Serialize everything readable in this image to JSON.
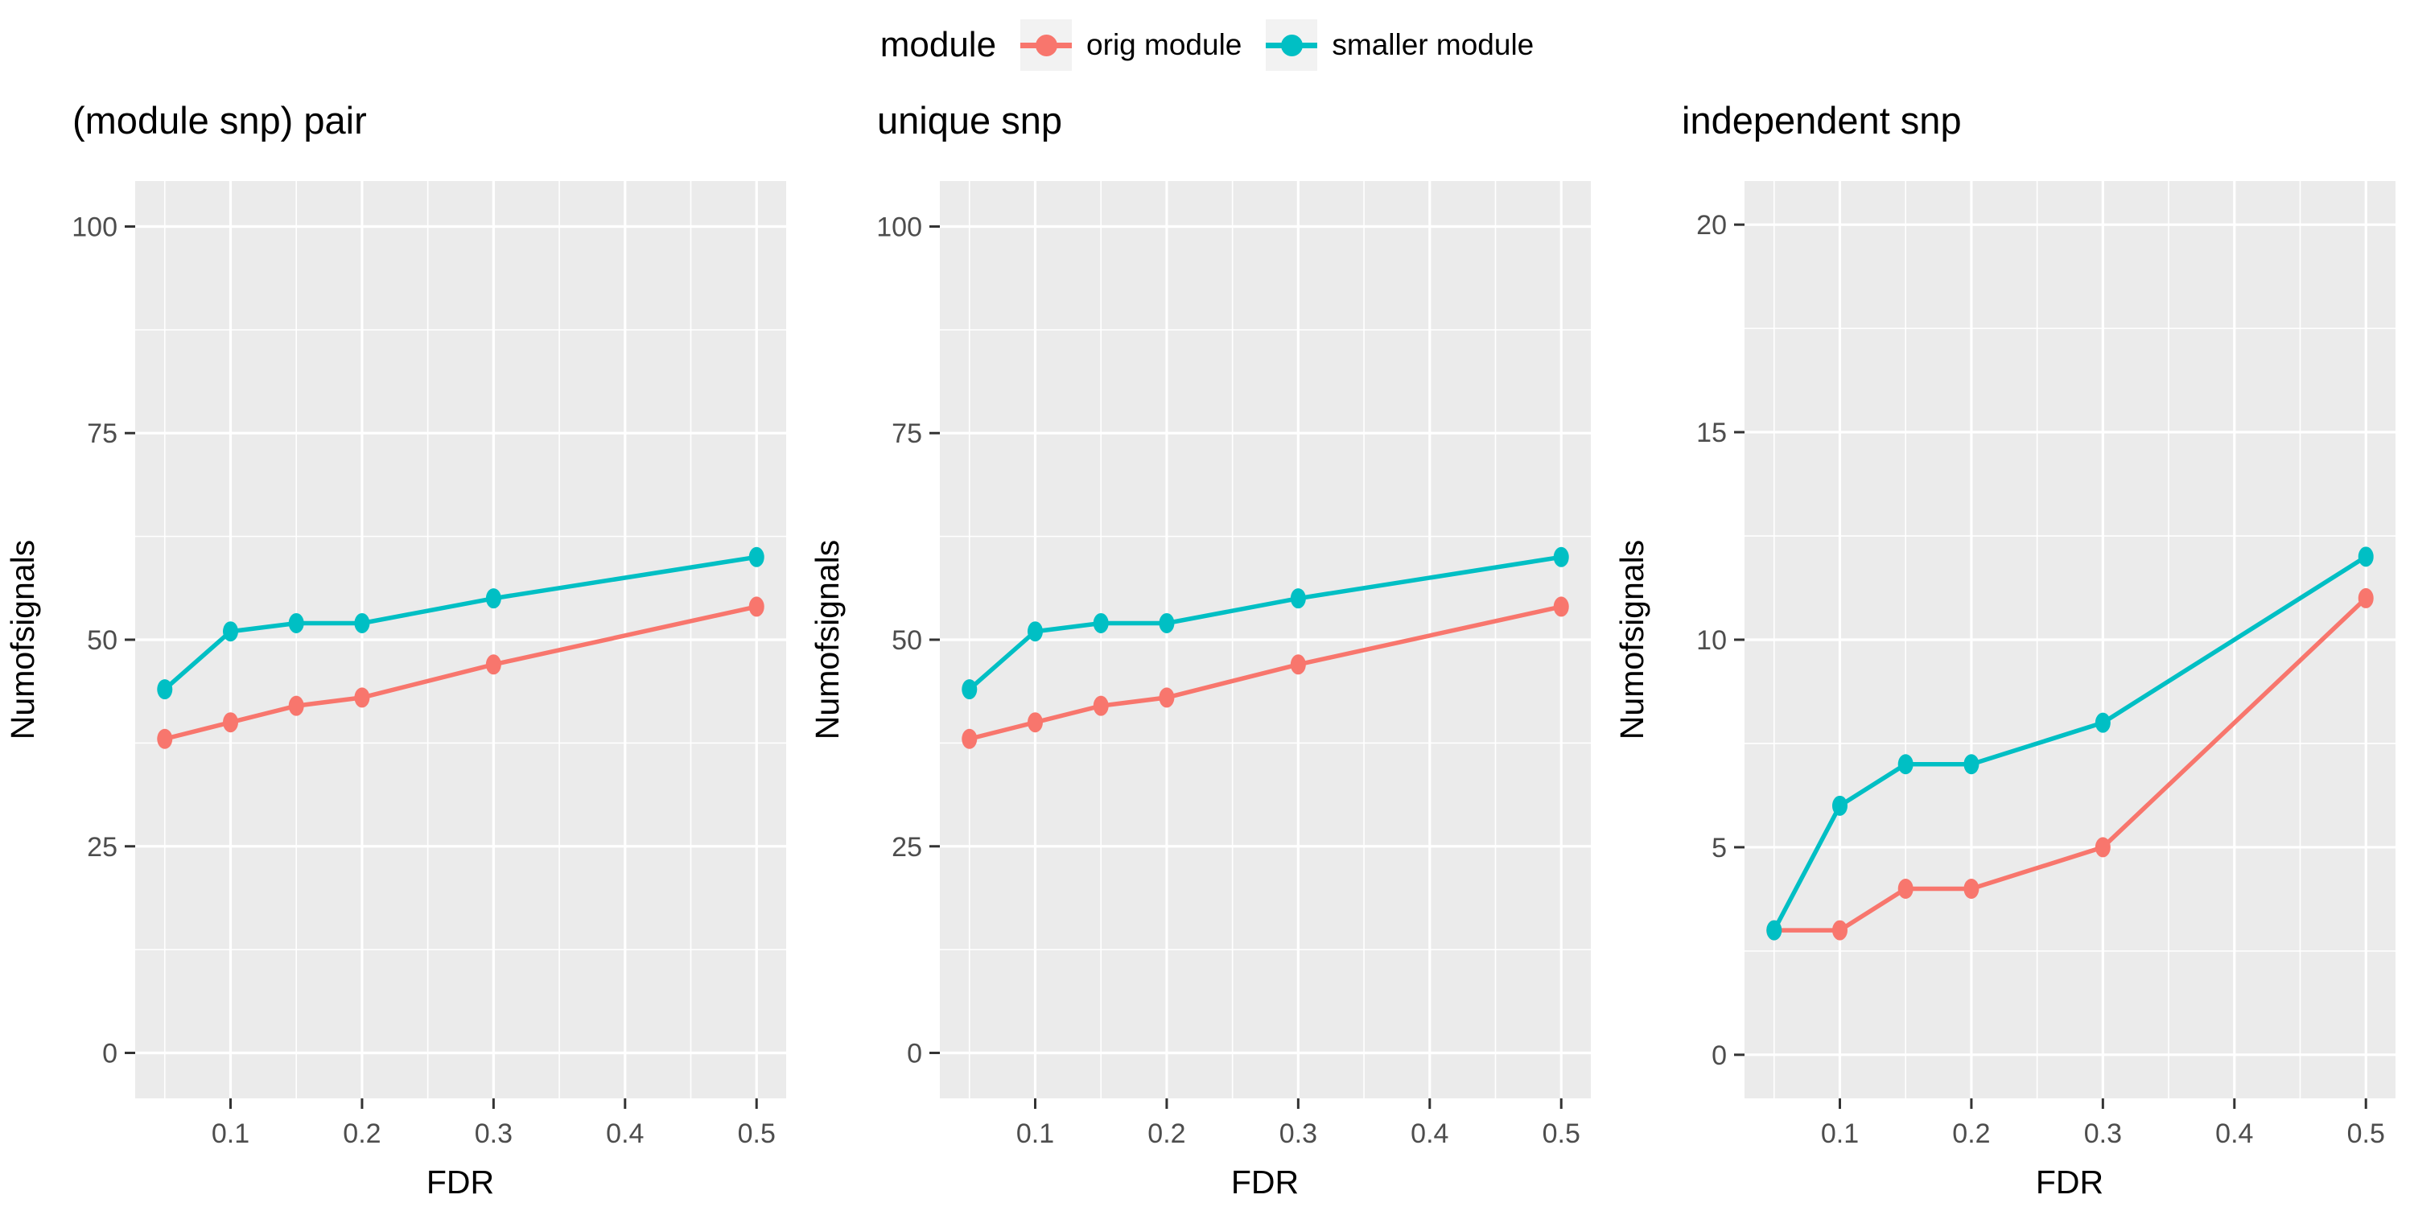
{
  "legend": {
    "title": "module",
    "position": "top"
  },
  "axes": {
    "x_label": "FDR",
    "y_label": "Numofsignals"
  },
  "chart_data": {
    "type": "line",
    "x": [
      0.05,
      0.1,
      0.15,
      0.2,
      0.3,
      0.5
    ],
    "x_ticks": [
      0.1,
      0.2,
      0.3,
      0.4,
      0.5
    ],
    "xlim": [
      0.0275,
      0.5225
    ],
    "grid": "major-and-minor",
    "legend_position": "top",
    "series": [
      {
        "name": "orig module",
        "color": "#F8766D"
      },
      {
        "name": "smaller module",
        "color": "#00BFC4"
      }
    ],
    "panels": [
      {
        "title": "(module snp) pair",
        "ylim": [
          -5.5,
          105.5
        ],
        "y_ticks": [
          0,
          25,
          50,
          75,
          100
        ],
        "values": {
          "orig module": [
            38,
            40,
            42,
            43,
            47,
            54
          ],
          "smaller module": [
            44,
            51,
            52,
            52,
            55,
            60
          ]
        }
      },
      {
        "title": "unique snp",
        "ylim": [
          -5.5,
          105.5
        ],
        "y_ticks": [
          0,
          25,
          50,
          75,
          100
        ],
        "values": {
          "orig module": [
            38,
            40,
            42,
            43,
            47,
            54
          ],
          "smaller module": [
            44,
            51,
            52,
            52,
            55,
            60
          ]
        }
      },
      {
        "title": "independent snp",
        "ylim": [
          -1.05,
          21.05
        ],
        "y_ticks": [
          0,
          5,
          10,
          15,
          20
        ],
        "values": {
          "orig module": [
            3,
            3,
            4,
            4,
            5,
            11
          ],
          "smaller module": [
            3,
            6,
            7,
            7,
            8,
            12
          ]
        }
      }
    ],
    "style": {
      "panel_bg": "#EBEBEB",
      "grid_color": "#FFFFFF",
      "tick_text": "#4D4D4D",
      "tick_mark": "#333333",
      "legend_key_bg": "#F2F2F2"
    }
  }
}
